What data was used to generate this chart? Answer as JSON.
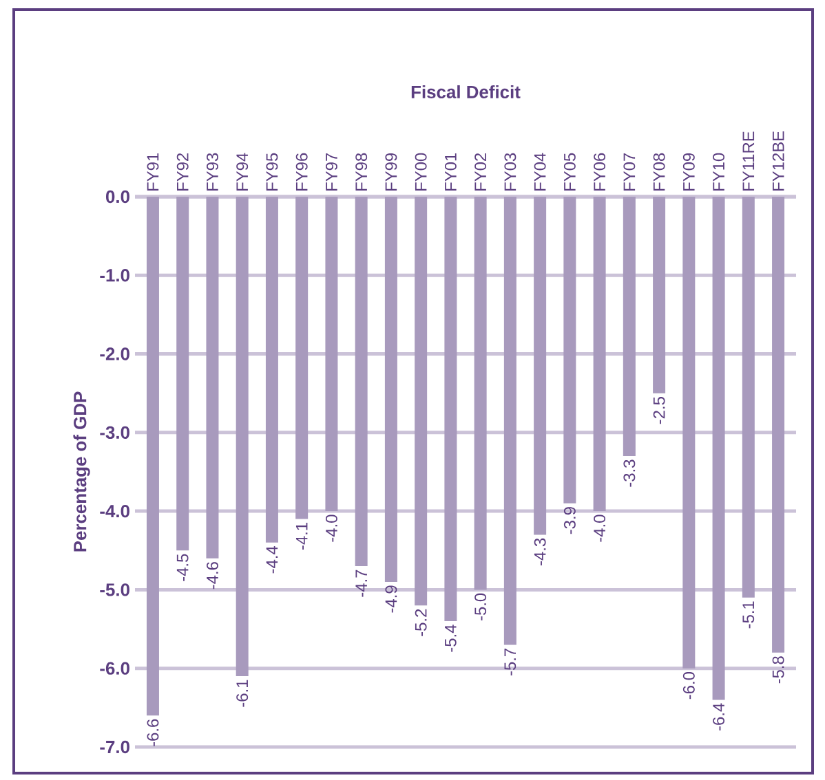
{
  "chart_data": {
    "type": "bar",
    "title": "Fiscal Deficit",
    "ylabel": "Percentage of GDP",
    "categories": [
      "FY91",
      "FY92",
      "FY93",
      "FY94",
      "FY95",
      "FY96",
      "FY97",
      "FY98",
      "FY99",
      "FY00",
      "FY01",
      "FY02",
      "FY03",
      "FY04",
      "FY05",
      "FY06",
      "FY07",
      "FY08",
      "FY09",
      "FY10",
      "FY11RE",
      "FY12BE"
    ],
    "values": [
      -6.6,
      -4.5,
      -4.6,
      -6.1,
      -4.4,
      -4.1,
      -4.0,
      -4.7,
      -4.9,
      -5.2,
      -5.4,
      -5.0,
      -5.7,
      -4.3,
      -3.9,
      -4.0,
      -3.3,
      -2.5,
      -6.0,
      -6.4,
      -5.1,
      -5.8
    ],
    "value_labels": [
      "-6.6",
      "-4.5",
      "-4.6",
      "-6.1",
      "-4.4",
      "-4.1",
      "-4.0",
      "-4.7",
      "-4.9",
      "-5.2",
      "-5.4",
      "-5.0",
      "-5.7",
      "-4.3",
      "-3.9",
      "-4.0",
      "-3.3",
      "-2.5",
      "-6.0",
      "-6.4",
      "-5.1",
      "-5.8"
    ],
    "color": "#a89abd",
    "ylim": [
      -7,
      0
    ],
    "yticks": [
      {
        "value": 0,
        "label": "0.0"
      },
      {
        "value": -1,
        "label": "-1.0"
      },
      {
        "value": -2,
        "label": "-2.0"
      },
      {
        "value": -3,
        "label": "-3.0"
      },
      {
        "value": -4,
        "label": "-4.0"
      },
      {
        "value": -5,
        "label": "-5.0"
      },
      {
        "value": -6,
        "label": "-6.0"
      },
      {
        "value": -7,
        "label": "-7.0"
      }
    ],
    "grid": "y"
  }
}
